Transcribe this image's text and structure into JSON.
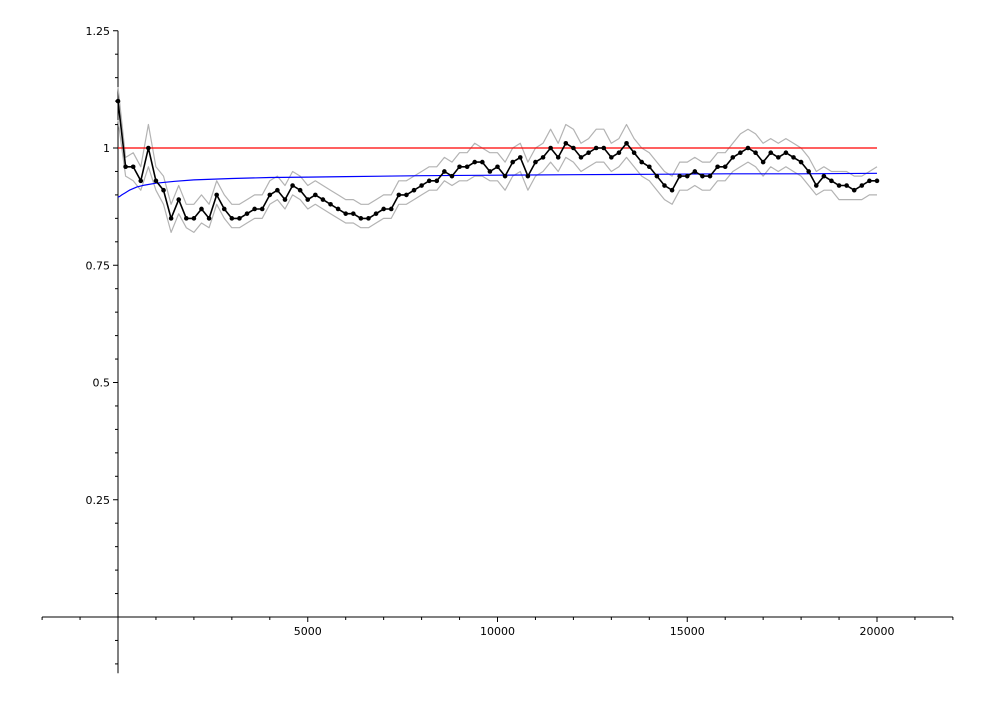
{
  "chart_data": {
    "type": "line",
    "title": "",
    "xlabel": "",
    "ylabel": "",
    "xlim": [
      -2000,
      22000
    ],
    "ylim": [
      -0.12,
      1.25
    ],
    "grid": false,
    "legend": "none",
    "x_ticks": [
      5000,
      10000,
      15000,
      20000
    ],
    "x_tick_labels": [
      "5000",
      "10000",
      "15000",
      "20000"
    ],
    "y_ticks": [
      0.25,
      0.5,
      0.75,
      1,
      1.25
    ],
    "y_tick_labels": [
      "0.25",
      "0.5",
      "0.75",
      "1",
      "1.25"
    ],
    "series": [
      {
        "role": "estimate",
        "color": "#000000",
        "markers": true,
        "x": [
          0,
          200,
          400,
          600,
          800,
          1000,
          1200,
          1400,
          1600,
          1800,
          2000,
          2200,
          2400,
          2600,
          2800,
          3000,
          3200,
          3400,
          3600,
          3800,
          4000,
          4200,
          4400,
          4600,
          4800,
          5000,
          5200,
          5400,
          5600,
          5800,
          6000,
          6200,
          6400,
          6600,
          6800,
          7000,
          7200,
          7400,
          7600,
          7800,
          8000,
          8200,
          8400,
          8600,
          8800,
          9000,
          9200,
          9400,
          9600,
          9800,
          10000,
          10200,
          10400,
          10600,
          10800,
          11000,
          11200,
          11400,
          11600,
          11800,
          12000,
          12200,
          12400,
          12600,
          12800,
          13000,
          13200,
          13400,
          13600,
          13800,
          14000,
          14200,
          14400,
          14600,
          14800,
          15000,
          15200,
          15400,
          15600,
          15800,
          16000,
          16200,
          16400,
          16600,
          16800,
          17000,
          17200,
          17400,
          17600,
          17800,
          18000,
          18200,
          18400,
          18600,
          18800,
          19000,
          19200,
          19400,
          19600,
          19800,
          20000
        ],
        "y": [
          1.1,
          0.96,
          0.96,
          0.93,
          1.0,
          0.93,
          0.91,
          0.85,
          0.89,
          0.85,
          0.85,
          0.87,
          0.85,
          0.9,
          0.87,
          0.85,
          0.85,
          0.86,
          0.87,
          0.87,
          0.9,
          0.91,
          0.89,
          0.92,
          0.91,
          0.89,
          0.9,
          0.89,
          0.88,
          0.87,
          0.86,
          0.86,
          0.85,
          0.85,
          0.86,
          0.87,
          0.87,
          0.9,
          0.9,
          0.91,
          0.92,
          0.93,
          0.93,
          0.95,
          0.94,
          0.96,
          0.96,
          0.97,
          0.97,
          0.95,
          0.96,
          0.94,
          0.97,
          0.98,
          0.94,
          0.97,
          0.98,
          1.0,
          0.98,
          1.01,
          1.0,
          0.98,
          0.99,
          1.0,
          1.0,
          0.98,
          0.99,
          1.01,
          0.99,
          0.97,
          0.96,
          0.94,
          0.92,
          0.91,
          0.94,
          0.94,
          0.95,
          0.94,
          0.94,
          0.96,
          0.96,
          0.98,
          0.99,
          1.0,
          0.99,
          0.97,
          0.99,
          0.98,
          0.99,
          0.98,
          0.97,
          0.95,
          0.92,
          0.94,
          0.93,
          0.92,
          0.92,
          0.91,
          0.92,
          0.93,
          0.93
        ]
      },
      {
        "role": "upper-bound",
        "color": "#b3b3b3",
        "markers": false,
        "x": [
          0,
          200,
          400,
          600,
          800,
          1000,
          1200,
          1400,
          1600,
          1800,
          2000,
          2200,
          2400,
          2600,
          2800,
          3000,
          3200,
          3400,
          3600,
          3800,
          4000,
          4200,
          4400,
          4600,
          4800,
          5000,
          5200,
          5400,
          5600,
          5800,
          6000,
          6200,
          6400,
          6600,
          6800,
          7000,
          7200,
          7400,
          7600,
          7800,
          8000,
          8200,
          8400,
          8600,
          8800,
          9000,
          9200,
          9400,
          9600,
          9800,
          10000,
          10200,
          10400,
          10600,
          10800,
          11000,
          11200,
          11400,
          11600,
          11800,
          12000,
          12200,
          12400,
          12600,
          12800,
          13000,
          13200,
          13400,
          13600,
          13800,
          14000,
          14200,
          14400,
          14600,
          14800,
          15000,
          15200,
          15400,
          15600,
          15800,
          16000,
          16200,
          16400,
          16600,
          16800,
          17000,
          17200,
          17400,
          17600,
          17800,
          18000,
          18200,
          18400,
          18600,
          18800,
          19000,
          19200,
          19400,
          19600,
          19800,
          20000
        ],
        "y": [
          1.13,
          0.98,
          0.99,
          0.96,
          1.05,
          0.96,
          0.94,
          0.88,
          0.92,
          0.88,
          0.88,
          0.9,
          0.88,
          0.93,
          0.9,
          0.88,
          0.88,
          0.89,
          0.9,
          0.9,
          0.93,
          0.94,
          0.92,
          0.95,
          0.94,
          0.92,
          0.93,
          0.92,
          0.91,
          0.9,
          0.89,
          0.89,
          0.88,
          0.88,
          0.89,
          0.9,
          0.9,
          0.93,
          0.93,
          0.94,
          0.95,
          0.96,
          0.96,
          0.98,
          0.97,
          0.99,
          0.99,
          1.01,
          1.0,
          0.99,
          0.99,
          0.97,
          1.0,
          1.01,
          0.97,
          1.0,
          1.01,
          1.04,
          1.01,
          1.05,
          1.04,
          1.01,
          1.02,
          1.04,
          1.04,
          1.01,
          1.02,
          1.05,
          1.02,
          1.0,
          0.99,
          0.97,
          0.95,
          0.94,
          0.97,
          0.97,
          0.98,
          0.97,
          0.97,
          0.99,
          0.99,
          1.01,
          1.03,
          1.04,
          1.03,
          1.01,
          1.02,
          1.01,
          1.02,
          1.01,
          1.0,
          0.98,
          0.95,
          0.96,
          0.95,
          0.95,
          0.95,
          0.94,
          0.94,
          0.95,
          0.96
        ]
      },
      {
        "role": "lower-bound",
        "color": "#b3b3b3",
        "markers": false,
        "x": [
          0,
          200,
          400,
          600,
          800,
          1000,
          1200,
          1400,
          1600,
          1800,
          2000,
          2200,
          2400,
          2600,
          2800,
          3000,
          3200,
          3400,
          3600,
          3800,
          4000,
          4200,
          4400,
          4600,
          4800,
          5000,
          5200,
          5400,
          5600,
          5800,
          6000,
          6200,
          6400,
          6600,
          6800,
          7000,
          7200,
          7400,
          7600,
          7800,
          8000,
          8200,
          8400,
          8600,
          8800,
          9000,
          9200,
          9400,
          9600,
          9800,
          10000,
          10200,
          10400,
          10600,
          10800,
          11000,
          11200,
          11400,
          11600,
          11800,
          12000,
          12200,
          12400,
          12600,
          12800,
          13000,
          13200,
          13400,
          13600,
          13800,
          14000,
          14200,
          14400,
          14600,
          14800,
          15000,
          15200,
          15400,
          15600,
          15800,
          16000,
          16200,
          16400,
          16600,
          16800,
          17000,
          17200,
          17400,
          17600,
          17800,
          18000,
          18200,
          18400,
          18600,
          18800,
          19000,
          19200,
          19400,
          19600,
          19800,
          20000
        ],
        "y": [
          1.06,
          0.94,
          0.93,
          0.91,
          0.96,
          0.91,
          0.88,
          0.82,
          0.86,
          0.83,
          0.82,
          0.84,
          0.83,
          0.88,
          0.85,
          0.83,
          0.83,
          0.84,
          0.85,
          0.85,
          0.88,
          0.89,
          0.87,
          0.9,
          0.89,
          0.87,
          0.88,
          0.87,
          0.86,
          0.85,
          0.84,
          0.84,
          0.83,
          0.83,
          0.84,
          0.85,
          0.85,
          0.88,
          0.88,
          0.89,
          0.9,
          0.91,
          0.91,
          0.93,
          0.92,
          0.93,
          0.93,
          0.94,
          0.94,
          0.93,
          0.93,
          0.91,
          0.94,
          0.95,
          0.91,
          0.94,
          0.95,
          0.97,
          0.95,
          0.98,
          0.97,
          0.95,
          0.96,
          0.97,
          0.97,
          0.95,
          0.96,
          0.98,
          0.96,
          0.94,
          0.93,
          0.91,
          0.89,
          0.88,
          0.91,
          0.91,
          0.92,
          0.91,
          0.91,
          0.93,
          0.93,
          0.95,
          0.96,
          0.97,
          0.96,
          0.94,
          0.96,
          0.95,
          0.96,
          0.95,
          0.94,
          0.92,
          0.9,
          0.91,
          0.91,
          0.89,
          0.89,
          0.89,
          0.89,
          0.9,
          0.9
        ]
      },
      {
        "role": "reference-constant",
        "color": "#ff0000",
        "markers": false,
        "x": [
          0,
          20000
        ],
        "y": [
          1,
          1
        ]
      },
      {
        "role": "reference-curve",
        "color": "#0000ff",
        "markers": false,
        "x": [
          0,
          50,
          100,
          200,
          300,
          500,
          700,
          1000,
          1500,
          2000,
          3000,
          4000,
          5000,
          6000,
          8000,
          10000,
          12000,
          14000,
          16000,
          18000,
          20000
        ],
        "y": [
          0.895,
          0.897,
          0.9,
          0.905,
          0.91,
          0.917,
          0.921,
          0.925,
          0.929,
          0.932,
          0.935,
          0.937,
          0.938,
          0.939,
          0.941,
          0.942,
          0.943,
          0.944,
          0.945,
          0.945,
          0.946
        ]
      }
    ]
  }
}
